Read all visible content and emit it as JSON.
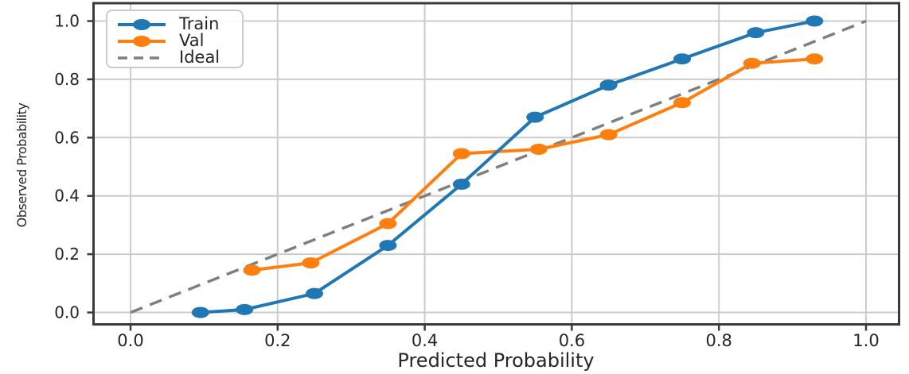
{
  "figure": {
    "background": "#ffffff"
  },
  "chart_data": {
    "type": "line",
    "title": "",
    "xlabel": "Predicted Probability",
    "ylabel": "Observed Probability",
    "xlim": [
      -0.051,
      1.045
    ],
    "ylim": [
      -0.04,
      1.062
    ],
    "x_ticks": [
      "0.0",
      "0.2",
      "0.4",
      "0.6",
      "0.8",
      "1.0"
    ],
    "y_ticks": [
      "0.0",
      "0.2",
      "0.4",
      "0.6",
      "0.8",
      "1.0"
    ],
    "x_tick_values": [
      0.0,
      0.2,
      0.4,
      0.6,
      0.8,
      1.0
    ],
    "y_tick_values": [
      0.0,
      0.2,
      0.4,
      0.6,
      0.8,
      1.0
    ],
    "grid": true,
    "legend_position": "upper-left",
    "series": [
      {
        "name": "Train",
        "color": "#1f77b4",
        "marker": "circle",
        "dash": null,
        "x": [
          0.095,
          0.155,
          0.25,
          0.35,
          0.45,
          0.55,
          0.65,
          0.75,
          0.85,
          0.93
        ],
        "y": [
          0.0,
          0.01,
          0.065,
          0.23,
          0.44,
          0.67,
          0.78,
          0.87,
          0.96,
          1.0
        ]
      },
      {
        "name": "Val",
        "color": "#ff7f0e",
        "marker": "circle",
        "dash": null,
        "x": [
          0.165,
          0.245,
          0.35,
          0.45,
          0.555,
          0.65,
          0.75,
          0.845,
          0.93
        ],
        "y": [
          0.145,
          0.17,
          0.305,
          0.545,
          0.56,
          0.61,
          0.72,
          0.855,
          0.87
        ]
      },
      {
        "name": "Ideal",
        "color": "#7f7f7f",
        "marker": null,
        "dash": [
          16,
          10
        ],
        "x": [
          0.0,
          1.0
        ],
        "y": [
          0.0,
          1.0
        ]
      }
    ],
    "colors": {
      "grid": "#cccccc",
      "spine": "#3a3a3a",
      "text": "#262626",
      "train": "#1f77b4",
      "val": "#ff7f0e",
      "ideal": "#7f7f7f"
    }
  }
}
